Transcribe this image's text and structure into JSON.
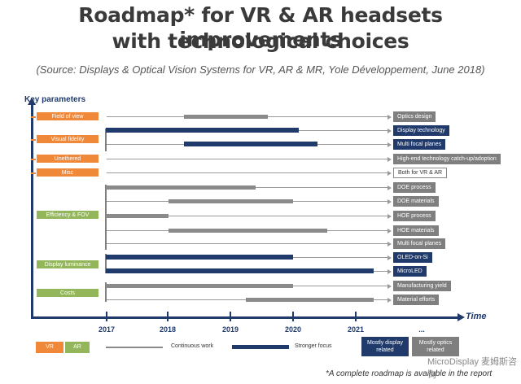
{
  "title_line1": "Roadmap* for VR & AR headsets improvements",
  "title_line2": "with technological choices",
  "source": "(Source: Displays & Optical Vision Systems for VR, AR & MR, Yole Développement, June 2018)",
  "key_parameters_label": "Key parameters",
  "time_label": "Time",
  "years": [
    "2017",
    "2018",
    "2019",
    "2020",
    "2021",
    "..."
  ],
  "parameters": [
    {
      "label": "Field of view",
      "type": "VR"
    },
    {
      "label": "Visual fidelity",
      "type": "VR"
    },
    {
      "label": "Unethered",
      "type": "VR"
    },
    {
      "label": "Misc",
      "type": "VR"
    },
    {
      "label": "Efficiency & FOV",
      "type": "AR"
    },
    {
      "label": "Display luminance",
      "type": "AR"
    },
    {
      "label": "Costs",
      "type": "AR"
    }
  ],
  "rows": [
    {
      "label": "Optics design",
      "style": "continuous",
      "start": 2018.25,
      "end": 2019.6,
      "tag": "optics"
    },
    {
      "label": "Display technology",
      "style": "stronger",
      "start": 2017.0,
      "end": 2020.1,
      "tag": "display"
    },
    {
      "label": "Multi focal planes",
      "style": "stronger",
      "start": 2018.25,
      "end": 2020.4,
      "tag": "display"
    },
    {
      "label": "High-end technology catch-up/adoption",
      "style": "none",
      "tag": "optics"
    },
    {
      "label": "Both for VR & AR",
      "style": "none",
      "tag": "both"
    },
    {
      "label": "DOE process",
      "style": "continuous",
      "start": 2017.0,
      "end": 2019.4,
      "tag": "optics"
    },
    {
      "label": "DOE materials",
      "style": "continuous",
      "start": 2018.0,
      "end": 2020.0,
      "tag": "optics"
    },
    {
      "label": "HOE process",
      "style": "continuous",
      "start": 2017.0,
      "end": 2018.0,
      "tag": "optics"
    },
    {
      "label": "HOE materials",
      "style": "continuous",
      "start": 2018.0,
      "end": 2020.55,
      "tag": "optics"
    },
    {
      "label": "Multi focal planes",
      "style": "none",
      "tag": "optics"
    },
    {
      "label": "OLED-on-Si",
      "style": "stronger",
      "start": 2017.0,
      "end": 2020.0,
      "tag": "display"
    },
    {
      "label": "MicroLED",
      "style": "stronger",
      "start": 2017.0,
      "end": 2021.3,
      "tag": "display"
    },
    {
      "label": "Manufacturing yield",
      "style": "continuous",
      "start": 2017.0,
      "end": 2020.0,
      "tag": "optics"
    },
    {
      "label": "Material efforts",
      "style": "continuous",
      "start": 2019.25,
      "end": 2021.3,
      "tag": "optics"
    }
  ],
  "legend": {
    "vr": "VR",
    "ar": "AR",
    "continuous": "Continuous work",
    "stronger": "Stronger focus",
    "display_line1": "Mostly display",
    "display_line2": "related",
    "optics_line1": "Mostly optics",
    "optics_line2": "related"
  },
  "footnote": "*A complete roadmap is available in the report",
  "watermark": "MicroDisplay 麦姆斯咨询",
  "colors": {
    "vr": "#f0883a",
    "ar": "#94b65a",
    "navy": "#1f3a6b",
    "grey": "#8a8a8a"
  }
}
